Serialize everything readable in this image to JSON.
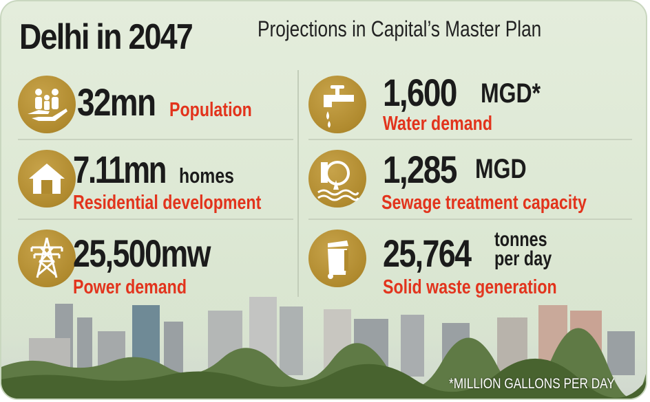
{
  "title": {
    "main": "Delhi in 2047",
    "subtitle": "Projections in Capital’s Master Plan"
  },
  "stats": {
    "population": {
      "value": "32mn",
      "label": "Population",
      "icon": "family-hand-icon"
    },
    "homes": {
      "value": "7.11mn",
      "unit": "homes",
      "label": "Residential development",
      "icon": "house-icon"
    },
    "power": {
      "value": "25,500mw",
      "label": "Power demand",
      "icon": "power-tower-icon"
    },
    "water": {
      "value": "1,600",
      "unit": "MGD*",
      "label": "Water demand",
      "icon": "water-tap-icon"
    },
    "sewage": {
      "value": "1,285",
      "unit": "MGD",
      "label": "Sewage treatment capacity",
      "icon": "sewage-pipe-icon"
    },
    "waste": {
      "value": "25,764",
      "unit_line1": "tonnes",
      "unit_line2": "per day",
      "label": "Solid waste generation",
      "icon": "waste-bin-icon"
    }
  },
  "footnote": "*MILLION GALLONS PER DAY",
  "colors": {
    "accent": "#e2331c",
    "icon_gold": "#b08a2e",
    "text": "#1b1b1b",
    "background": "#dde8d4"
  }
}
